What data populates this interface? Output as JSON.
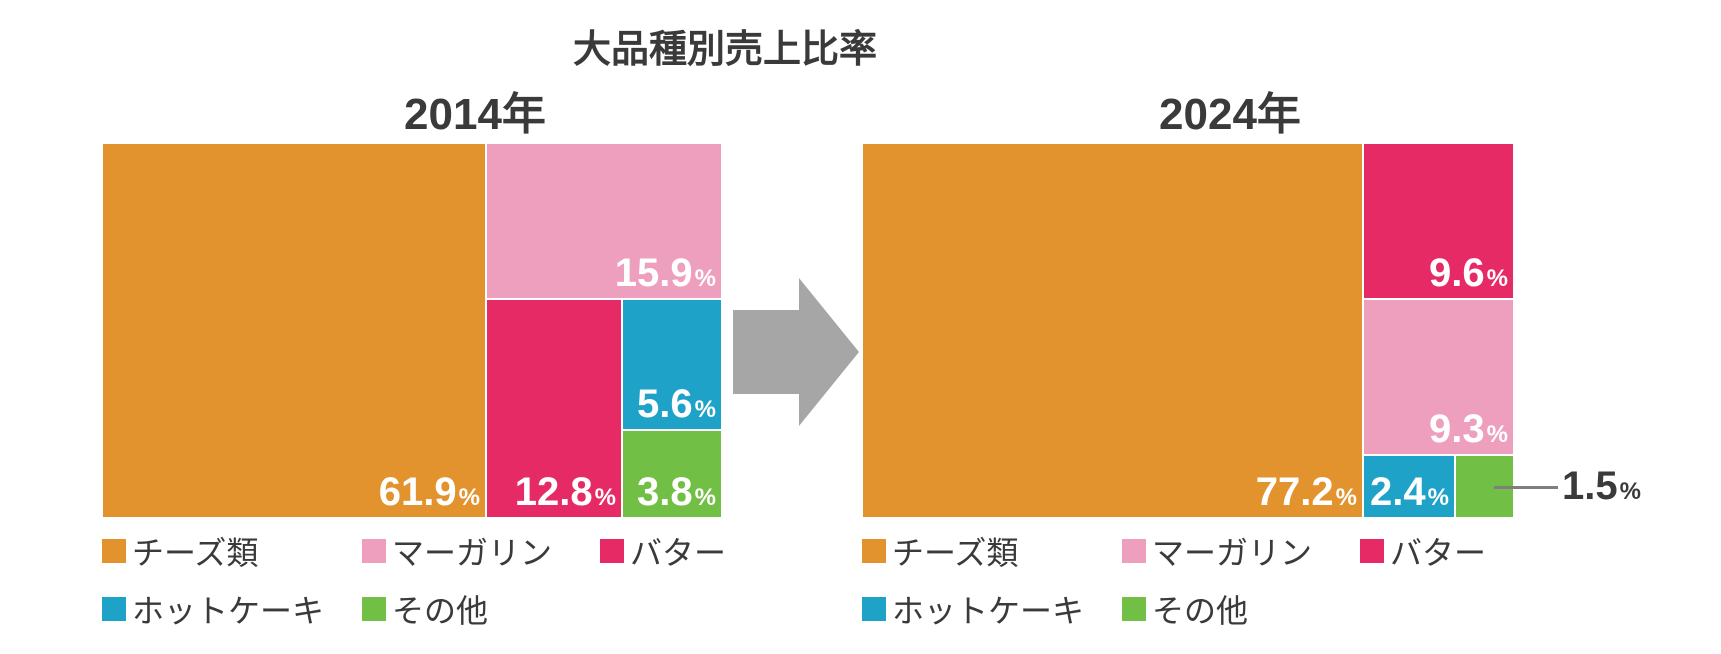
{
  "title": "大品種別売上比率",
  "percent_unit": "%",
  "colors": {
    "cheese": "#E3932E",
    "margarine": "#EE9FBE",
    "butter": "#E52A66",
    "hotcake": "#1EA2C8",
    "other": "#72BF45",
    "arrow": "#A6A6A6"
  },
  "chart_data": [
    {
      "type": "treemap",
      "title": "2014年",
      "categories": [
        "チーズ類",
        "マーガリン",
        "バター",
        "ホットケーキ",
        "その他"
      ],
      "values": [
        61.9,
        15.9,
        12.8,
        5.6,
        3.8
      ],
      "labels": [
        "61.9",
        "15.9",
        "12.8",
        "5.6",
        "3.8"
      ],
      "legend_position": "bottom"
    },
    {
      "type": "treemap",
      "title": "2024年",
      "categories": [
        "チーズ類",
        "マーガリン",
        "バター",
        "ホットケーキ",
        "その他"
      ],
      "values": [
        77.2,
        9.3,
        9.6,
        2.4,
        1.5
      ],
      "labels": [
        "77.2",
        "9.3",
        "9.6",
        "2.4",
        "1.5"
      ],
      "legend_position": "bottom"
    }
  ]
}
